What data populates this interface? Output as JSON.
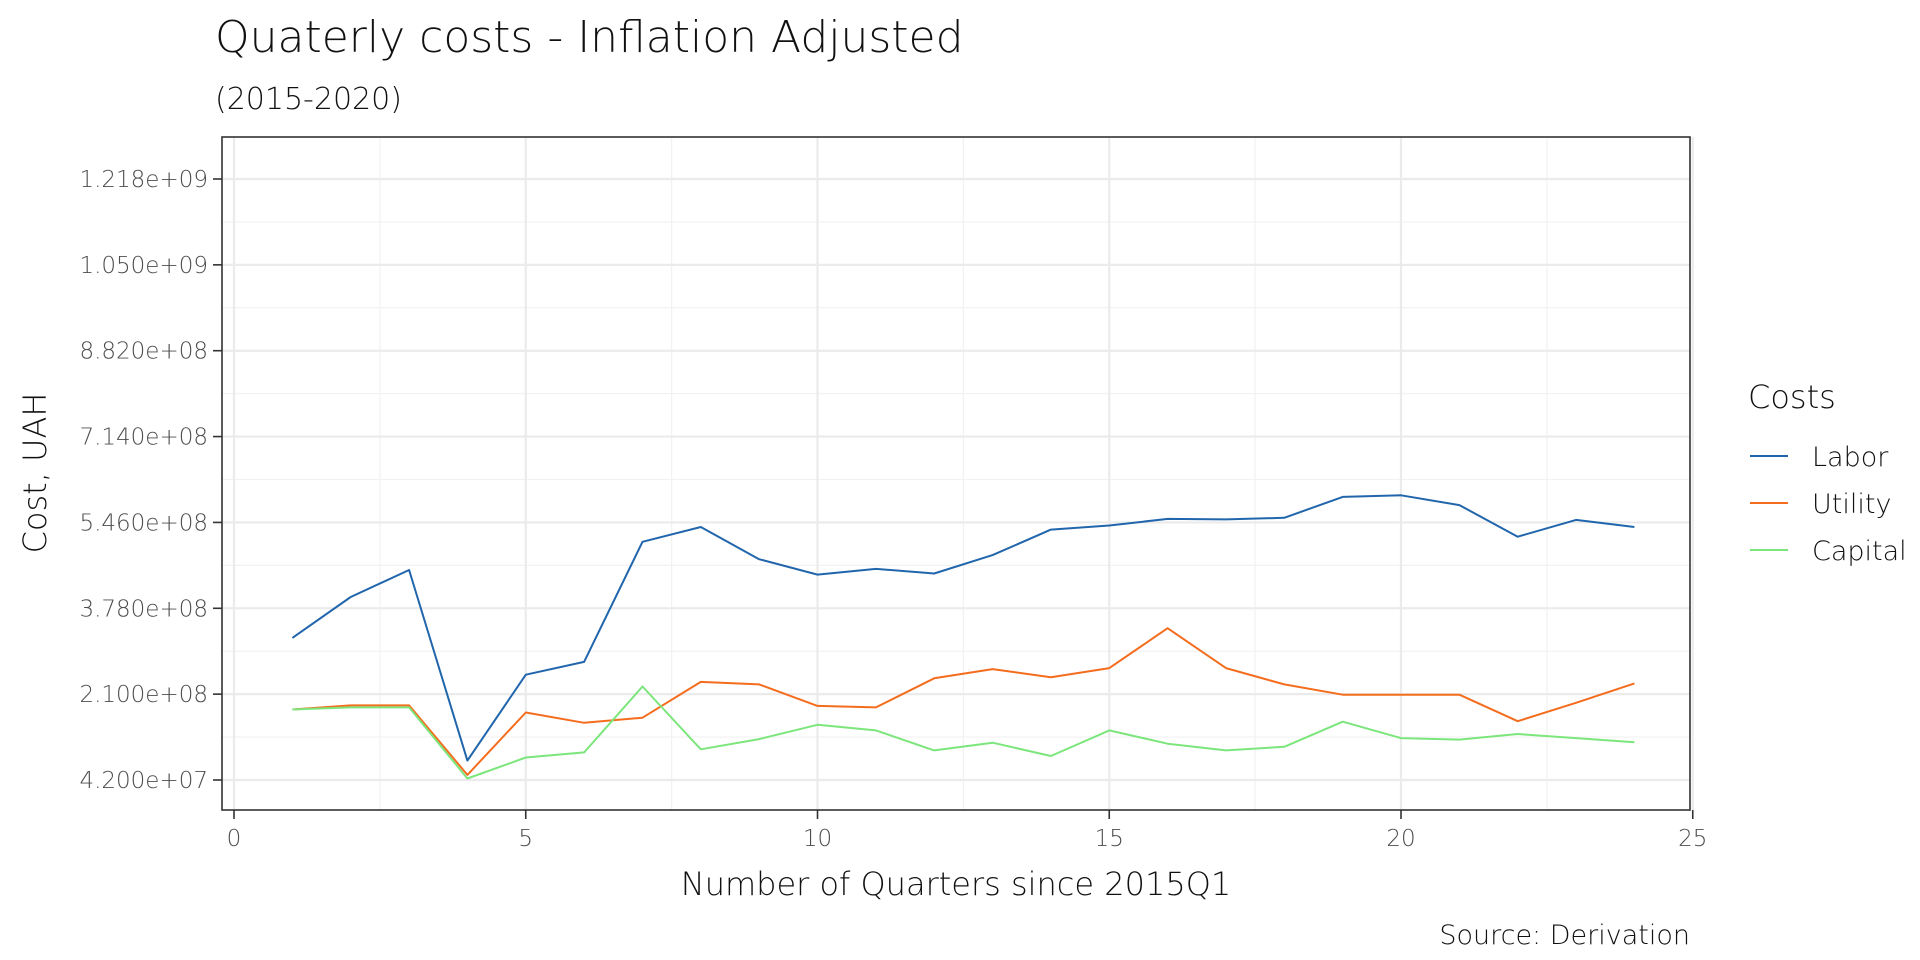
{
  "chart_data": {
    "type": "line",
    "title": "Quaterly costs - Inflation Adjusted",
    "subtitle": "(2015-2020)",
    "xlabel": "Number of Quarters since 2015Q1",
    "ylabel": "Cost, UAH",
    "caption": "Source: Derivation",
    "xlim": [
      0,
      25
    ],
    "ylim": [
      42000000,
      1218000000
    ],
    "x_ticks": [
      0,
      5,
      10,
      15,
      20,
      25
    ],
    "y_ticks": [
      42000000,
      210000000,
      378000000,
      546000000,
      714000000,
      882000000,
      1050000000,
      1218000000
    ],
    "y_tick_labels": [
      "4.200e+07",
      "2.100e+08",
      "3.780e+08",
      "5.460e+08",
      "7.140e+08",
      "8.820e+08",
      "1.050e+09",
      "1.218e+09"
    ],
    "grid": true,
    "legend_title": "Costs",
    "legend_position": "right",
    "x": [
      1,
      2,
      3,
      4,
      5,
      6,
      7,
      8,
      9,
      10,
      11,
      12,
      13,
      14,
      15,
      16,
      17,
      18,
      19,
      20,
      21,
      22,
      23,
      24
    ],
    "series": [
      {
        "name": "Labor",
        "color": "#2166ac",
        "values": [
          320000000,
          400000000,
          453000000,
          80000000,
          248000000,
          273000000,
          508000000,
          537000000,
          474000000,
          444000000,
          455000000,
          446000000,
          482000000,
          532000000,
          540000000,
          553000000,
          552000000,
          555000000,
          596000000,
          599000000,
          580000000,
          518000000,
          551000000,
          537000000
        ]
      },
      {
        "name": "Utility",
        "color": "#f46d1e",
        "values": [
          180000000,
          188000000,
          188000000,
          52000000,
          174000000,
          154000000,
          164000000,
          234000000,
          229000000,
          187000000,
          184000000,
          241000000,
          259000000,
          243000000,
          261000000,
          339000000,
          261000000,
          229000000,
          209000000,
          209000000,
          209000000,
          157000000,
          193000000,
          231000000
        ]
      },
      {
        "name": "Capital",
        "color": "#7ce67c",
        "values": [
          180000000,
          184000000,
          184000000,
          45000000,
          86000000,
          96000000,
          225000000,
          102000000,
          122000000,
          150000000,
          139000000,
          100000000,
          115000000,
          89000000,
          139000000,
          113000000,
          100000000,
          107000000,
          156000000,
          124000000,
          121000000,
          132000000,
          124000000,
          116000000
        ]
      }
    ]
  }
}
